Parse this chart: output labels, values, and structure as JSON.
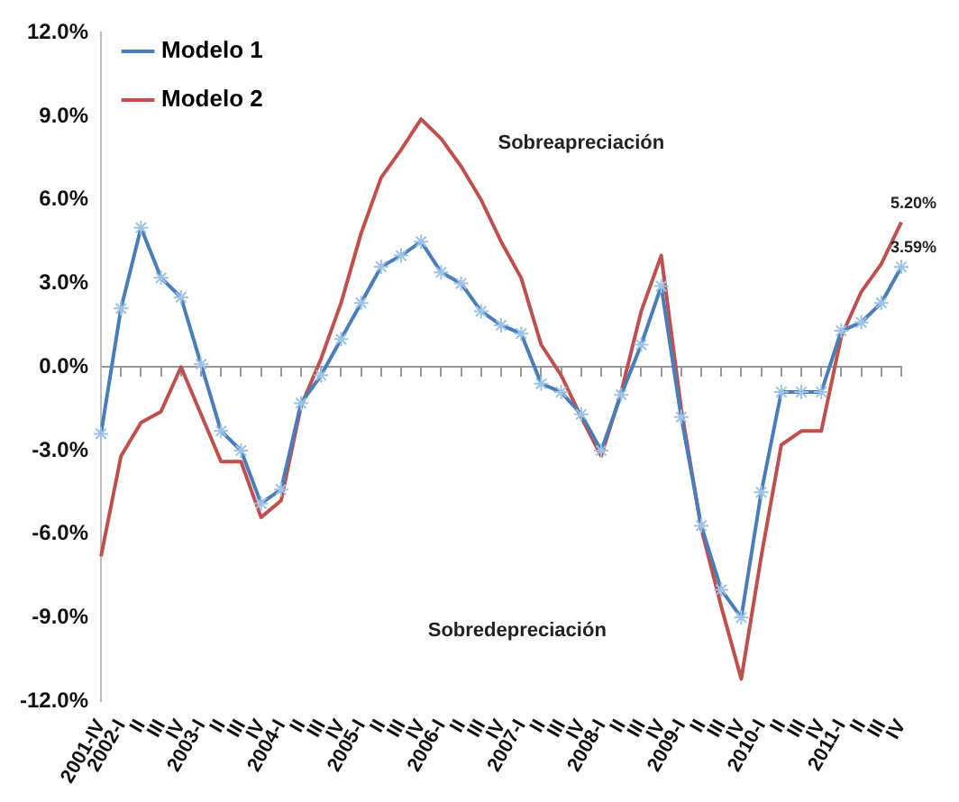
{
  "chart_data": {
    "type": "line",
    "categories": [
      "2001-IV",
      "2002-I",
      "II",
      "III",
      "IV",
      "2003-I",
      "II",
      "III",
      "IV",
      "2004-I",
      "II",
      "III",
      "IV",
      "2005-I",
      "II",
      "III",
      "IV",
      "2006-I",
      "II",
      "III",
      "IV",
      "2007-I",
      "II",
      "III",
      "IV",
      "2008-I",
      "II",
      "III",
      "IV",
      "2009-I",
      "II",
      "III",
      "IV",
      "2010-I",
      "II",
      "III",
      "IV",
      "2011-I",
      "II",
      "III",
      "IV"
    ],
    "series": [
      {
        "name": "Modelo 1",
        "color": "#4a7ebb",
        "marker": "cross",
        "values": [
          -2.4,
          2.1,
          5.0,
          3.2,
          2.5,
          0.1,
          -2.3,
          -3.0,
          -4.9,
          -4.4,
          -1.3,
          -0.3,
          1.0,
          2.3,
          3.6,
          4.0,
          4.5,
          3.4,
          3.0,
          2.0,
          1.5,
          1.2,
          -0.6,
          -0.9,
          -1.7,
          -3.0,
          -1.0,
          0.8,
          2.9,
          -1.8,
          -5.7,
          -8.0,
          -9.0,
          -4.5,
          -0.9,
          -0.9,
          -0.9,
          1.3,
          1.6,
          2.3,
          3.59
        ],
        "value_labels": [
          null,
          null,
          null,
          null,
          null,
          null,
          null,
          null,
          null,
          null,
          null,
          null,
          null,
          null,
          null,
          null,
          null,
          null,
          null,
          null,
          null,
          null,
          null,
          null,
          null,
          null,
          null,
          null,
          null,
          null,
          null,
          null,
          null,
          null,
          null,
          null,
          null,
          null,
          null,
          null,
          "3.59%"
        ]
      },
      {
        "name": "Modelo 2",
        "color": "#c0504d",
        "marker": "none",
        "values": [
          -6.8,
          -3.2,
          -2.0,
          -1.6,
          0.0,
          -1.7,
          -3.4,
          -3.4,
          -5.4,
          -4.8,
          -1.4,
          0.3,
          2.3,
          4.8,
          6.8,
          7.8,
          8.9,
          8.2,
          7.2,
          6.0,
          4.5,
          3.2,
          0.8,
          -0.3,
          -1.8,
          -3.2,
          -0.9,
          2.0,
          4.0,
          -1.5,
          -5.8,
          -8.6,
          -11.2,
          -6.8,
          -2.8,
          -2.3,
          -2.3,
          1.1,
          2.7,
          3.7,
          5.2
        ],
        "value_labels": [
          null,
          null,
          null,
          null,
          null,
          null,
          null,
          null,
          null,
          null,
          null,
          null,
          null,
          null,
          null,
          null,
          null,
          null,
          null,
          null,
          null,
          null,
          null,
          null,
          null,
          null,
          null,
          null,
          null,
          null,
          null,
          null,
          null,
          null,
          null,
          null,
          null,
          null,
          null,
          null,
          "5.20%"
        ]
      }
    ],
    "ylim": [
      -12,
      12
    ],
    "yticks": [
      {
        "value": -12,
        "label": "-12.0%"
      },
      {
        "value": -9,
        "label": "-9.0%"
      },
      {
        "value": -6,
        "label": "-6.0%"
      },
      {
        "value": -3,
        "label": "-3.0%"
      },
      {
        "value": 0,
        "label": "0.0%"
      },
      {
        "value": 3,
        "label": "3.0%"
      },
      {
        "value": 6,
        "label": "6.0%"
      },
      {
        "value": 9,
        "label": "9.0%"
      },
      {
        "value": 12,
        "label": "12.0%"
      }
    ],
    "annotations": [
      "Sobreapreciación",
      "Sobredepreciación"
    ],
    "ref_lines": [
      {
        "axis": "y",
        "value": 0,
        "color": "#999999"
      }
    ],
    "grid": false,
    "legend": "top left",
    "line_style": "solid"
  }
}
